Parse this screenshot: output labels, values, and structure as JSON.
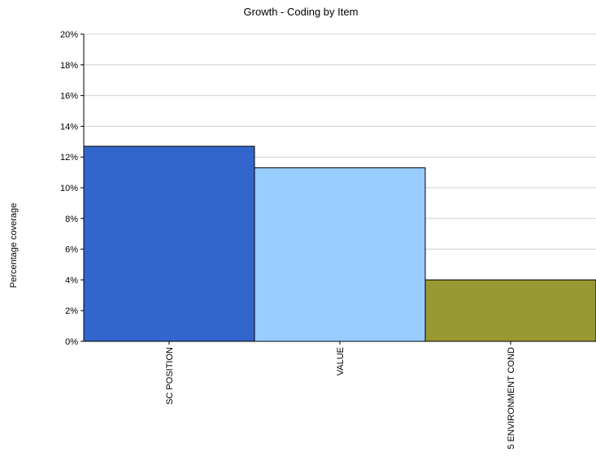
{
  "chart_data": {
    "type": "bar",
    "title": "Growth - Coding by Item",
    "ylabel": "Percentage coverage",
    "xlabel": "",
    "categories": [
      "SC POSITION",
      "VALUE",
      "5 ENVIRONMENT COND"
    ],
    "values": [
      12.7,
      11.3,
      4.0
    ],
    "colors": [
      "#3366cc",
      "#99ccff",
      "#999933"
    ],
    "ylim": [
      0,
      20
    ],
    "yticks": [
      0,
      2,
      4,
      6,
      8,
      10,
      12,
      14,
      16,
      18,
      20
    ],
    "ytick_suffix": "%",
    "grid": true,
    "legend": "none"
  }
}
